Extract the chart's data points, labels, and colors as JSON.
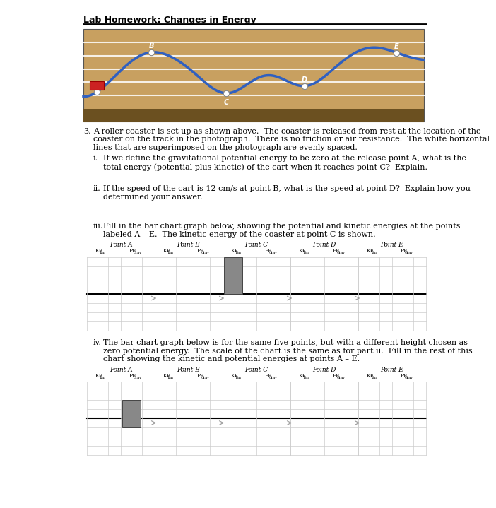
{
  "title": "Lab Homework: Changes in Energy",
  "intro_text_lines": [
    "A roller coaster is set up as shown above.  The coaster is released from rest at the location of the",
    "coaster on the track in the photograph.  There is no friction or air resistance.  The white horizontal",
    "lines that are superimposed on the photograph are evenly spaced."
  ],
  "sub_i_lines": [
    "If we define the gravitational potential energy to be zero at the release point A, what is the",
    "total energy (potential plus kinetic) of the cart when it reaches point C?  Explain."
  ],
  "sub_ii_lines": [
    "If the speed of the cart is 12 cm/s at point B, what is the speed at point D?  Explain how you",
    "determined your answer."
  ],
  "sub_iii_lines": [
    "Fill in the bar chart graph below, showing the potential and kinetic energies at the points",
    "labeled A – E.  The kinetic energy of the coaster at point C is shown."
  ],
  "sub_iv_lines": [
    "The bar chart graph below is for the same five points, but with a different height chosen as",
    "zero potential energy.  The scale of the chart is the same as for part ii.  Fill in the rest of this",
    "chart showing the kinetic and potential energies at points A – E."
  ],
  "points": [
    "Point A",
    "Point B",
    "Point C",
    "Point D",
    "Point E"
  ],
  "bg_color": "#ffffff",
  "img_bg_color": "#c8a870",
  "img_bg_dark": "#8b7040",
  "track_color": "#3060c0",
  "cart_color": "#cc2222",
  "bar_fill_color": "#888888",
  "grid_line_color": "#cccccc",
  "mid_line_color": "#000000",
  "text_color": "#000000",
  "arrow_color": "#aaaaaa"
}
